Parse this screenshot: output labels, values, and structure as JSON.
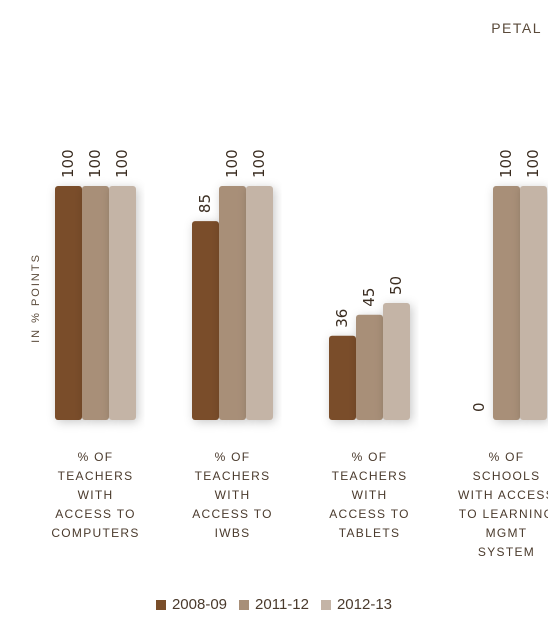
{
  "header": {
    "label": "PETAL"
  },
  "chart_data": {
    "type": "bar",
    "ylabel": "IN % POINTS",
    "ylim": [
      0,
      100
    ],
    "categories": [
      "% OF\nTEACHERS\nWITH\nACCESS TO\nCOMPUTERS",
      "% OF\nTEACHERS\nWITH\nACCESS TO\nIWBS",
      "% OF\nTEACHERS\nWITH\nACCESS TO\nTABLETS",
      "% OF\nSCHOOLS\nWITH ACCESS\nTO LEARNING\nMGMT\nSYSTEM"
    ],
    "series": [
      {
        "name": "2008-09",
        "color": "#7a4e2a",
        "values": [
          100,
          85,
          36,
          0
        ]
      },
      {
        "name": "2011-12",
        "color": "#a88f78",
        "values": [
          100,
          100,
          45,
          100
        ]
      },
      {
        "name": "2012-13",
        "color": "#c4b4a6",
        "values": [
          100,
          100,
          50,
          100
        ]
      }
    ],
    "data_labels": [
      [
        "100",
        "100",
        "100"
      ],
      [
        "85",
        "100",
        "100"
      ],
      [
        "36",
        "45",
        "50"
      ],
      [
        "0",
        "100",
        "100"
      ]
    ],
    "legend": "bottom-center",
    "grid": false
  }
}
